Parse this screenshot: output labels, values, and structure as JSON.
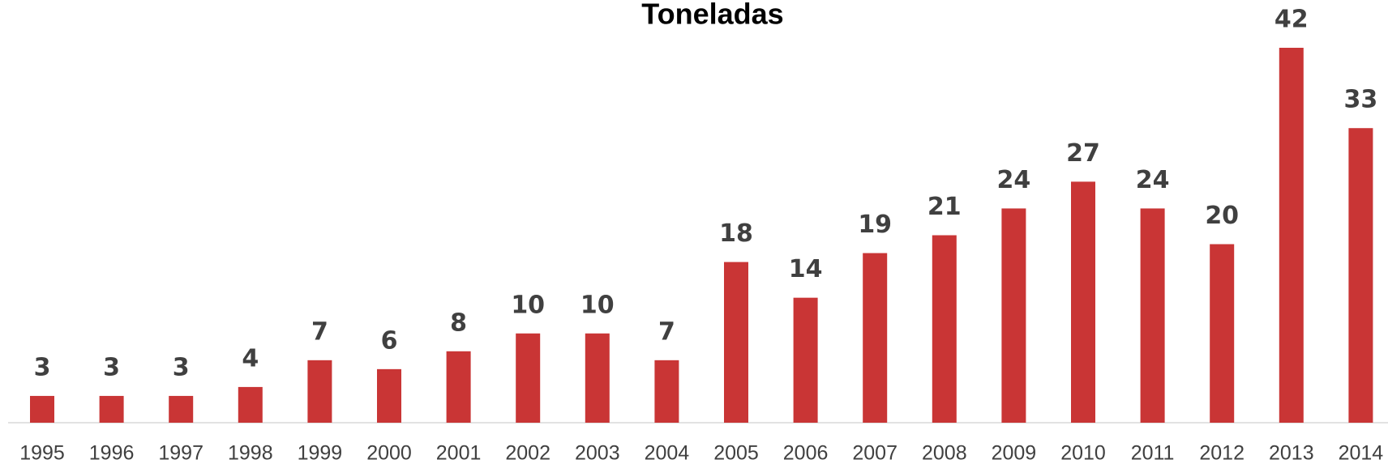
{
  "chart_data": {
    "type": "bar",
    "title": "Toneladas",
    "categories": [
      "1995",
      "1996",
      "1997",
      "1998",
      "1999",
      "2000",
      "2001",
      "2002",
      "2003",
      "2004",
      "2005",
      "2006",
      "2007",
      "2008",
      "2009",
      "2010",
      "2011",
      "2012",
      "2013",
      "2014"
    ],
    "values": [
      3,
      3,
      3,
      4,
      7,
      6,
      8,
      10,
      10,
      7,
      18,
      14,
      19,
      21,
      24,
      27,
      24,
      20,
      42,
      33
    ],
    "color": "#c93535"
  }
}
